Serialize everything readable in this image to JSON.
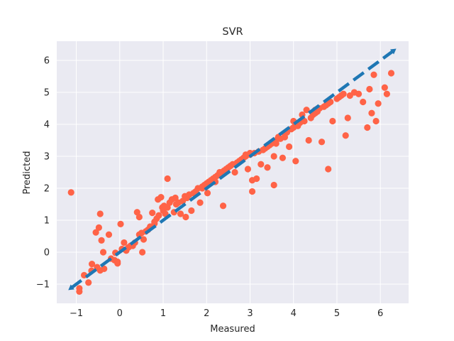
{
  "chart_data": {
    "type": "scatter",
    "title": "SVR",
    "xlabel": "Measured",
    "ylabel": "Predicted",
    "xlim": [
      -1.45,
      6.65
    ],
    "ylim": [
      -1.6,
      6.6
    ],
    "xticks": [
      -1,
      0,
      1,
      2,
      3,
      4,
      5,
      6
    ],
    "yticks": [
      -1,
      0,
      1,
      2,
      3,
      4,
      5,
      6
    ],
    "grid": true,
    "colors": {
      "background": "#eaeaf2",
      "grid": "#ffffff",
      "points": "#ff6347",
      "line": "#1f77b4"
    },
    "series": [
      {
        "kind": "points",
        "points": [
          [
            -1.12,
            1.87
          ],
          [
            -0.93,
            -1.13
          ],
          [
            -0.93,
            -1.23
          ],
          [
            -0.82,
            -0.72
          ],
          [
            -0.72,
            -0.95
          ],
          [
            -0.65,
            -0.58
          ],
          [
            -0.64,
            -0.37
          ],
          [
            -0.55,
            0.62
          ],
          [
            -0.52,
            -0.47
          ],
          [
            -0.48,
            0.77
          ],
          [
            -0.45,
            1.2
          ],
          [
            -0.45,
            -0.57
          ],
          [
            -0.42,
            0.37
          ],
          [
            -0.38,
            0.0
          ],
          [
            -0.36,
            -0.52
          ],
          [
            -0.25,
            0.55
          ],
          [
            -0.2,
            -0.2
          ],
          [
            -0.12,
            -0.25
          ],
          [
            -0.1,
            -0.02
          ],
          [
            -0.05,
            -0.35
          ],
          [
            -0.05,
            -0.3
          ],
          [
            0.02,
            0.88
          ],
          [
            0.05,
            0.1
          ],
          [
            0.1,
            0.3
          ],
          [
            0.15,
            0.05
          ],
          [
            0.2,
            0.15
          ],
          [
            0.25,
            0.2
          ],
          [
            0.3,
            0.2
          ],
          [
            0.35,
            0.3
          ],
          [
            0.4,
            1.25
          ],
          [
            0.45,
            1.1
          ],
          [
            0.45,
            0.55
          ],
          [
            0.5,
            0.6
          ],
          [
            0.52,
            0.0
          ],
          [
            0.55,
            0.4
          ],
          [
            0.6,
            0.65
          ],
          [
            0.65,
            0.7
          ],
          [
            0.7,
            0.8
          ],
          [
            0.75,
            1.23
          ],
          [
            0.8,
            0.9
          ],
          [
            0.85,
            1.05
          ],
          [
            0.88,
            1.65
          ],
          [
            0.9,
            1.15
          ],
          [
            0.95,
            1.72
          ],
          [
            0.98,
            1.4
          ],
          [
            1.0,
            1.3
          ],
          [
            1.02,
            1.45
          ],
          [
            1.05,
            1.2
          ],
          [
            1.1,
            1.4
          ],
          [
            1.15,
            1.55
          ],
          [
            1.2,
            1.65
          ],
          [
            1.25,
            1.25
          ],
          [
            1.28,
            1.7
          ],
          [
            1.3,
            1.5
          ],
          [
            1.35,
            1.55
          ],
          [
            1.4,
            1.2
          ],
          [
            1.45,
            1.6
          ],
          [
            1.5,
            1.75
          ],
          [
            1.52,
            1.1
          ],
          [
            1.55,
            1.7
          ],
          [
            1.6,
            1.8
          ],
          [
            1.65,
            1.3
          ],
          [
            1.7,
            1.85
          ],
          [
            1.75,
            1.9
          ],
          [
            1.8,
            2.0
          ],
          [
            1.85,
            1.55
          ],
          [
            1.9,
            2.05
          ],
          [
            1.95,
            2.1
          ],
          [
            2.0,
            2.15
          ],
          [
            2.02,
            1.85
          ],
          [
            2.05,
            2.2
          ],
          [
            2.1,
            2.25
          ],
          [
            2.15,
            2.3
          ],
          [
            2.2,
            2.2
          ],
          [
            2.25,
            2.4
          ],
          [
            2.3,
            2.45
          ],
          [
            2.35,
            2.5
          ],
          [
            2.38,
            1.45
          ],
          [
            2.4,
            2.55
          ],
          [
            2.45,
            2.6
          ],
          [
            2.5,
            2.65
          ],
          [
            2.55,
            2.7
          ],
          [
            2.6,
            2.75
          ],
          [
            2.65,
            2.5
          ],
          [
            2.7,
            2.8
          ],
          [
            2.75,
            2.85
          ],
          [
            2.8,
            2.9
          ],
          [
            2.85,
            2.95
          ],
          [
            2.9,
            3.0
          ],
          [
            2.95,
            2.6
          ],
          [
            3.0,
            3.05
          ],
          [
            3.05,
            1.9
          ],
          [
            3.05,
            2.25
          ],
          [
            3.1,
            3.1
          ],
          [
            3.15,
            2.3
          ],
          [
            3.2,
            3.15
          ],
          [
            3.25,
            2.75
          ],
          [
            3.3,
            3.2
          ],
          [
            3.35,
            3.25
          ],
          [
            3.4,
            2.65
          ],
          [
            3.45,
            3.35
          ],
          [
            3.5,
            3.4
          ],
          [
            3.55,
            2.1
          ],
          [
            3.55,
            3.0
          ],
          [
            3.6,
            3.5
          ],
          [
            3.65,
            3.6
          ],
          [
            3.7,
            3.55
          ],
          [
            3.75,
            2.95
          ],
          [
            3.8,
            3.7
          ],
          [
            3.85,
            3.75
          ],
          [
            3.9,
            3.3
          ],
          [
            3.95,
            3.85
          ],
          [
            4.0,
            3.9
          ],
          [
            4.05,
            2.85
          ],
          [
            4.1,
            3.95
          ],
          [
            4.15,
            4.05
          ],
          [
            4.2,
            4.3
          ],
          [
            4.25,
            4.1
          ],
          [
            4.3,
            4.45
          ],
          [
            4.35,
            3.5
          ],
          [
            4.4,
            4.2
          ],
          [
            4.45,
            4.3
          ],
          [
            4.5,
            4.35
          ],
          [
            4.55,
            4.4
          ],
          [
            4.6,
            4.5
          ],
          [
            4.65,
            3.45
          ],
          [
            4.7,
            4.55
          ],
          [
            4.75,
            4.6
          ],
          [
            4.8,
            4.65
          ],
          [
            4.85,
            4.7
          ],
          [
            4.9,
            4.1
          ],
          [
            5.0,
            4.8
          ],
          [
            5.05,
            4.85
          ],
          [
            5.1,
            4.9
          ],
          [
            5.15,
            4.95
          ],
          [
            5.2,
            3.65
          ],
          [
            5.25,
            4.2
          ],
          [
            5.3,
            4.9
          ],
          [
            5.4,
            5.0
          ],
          [
            5.5,
            4.95
          ],
          [
            5.6,
            4.7
          ],
          [
            5.7,
            3.9
          ],
          [
            5.8,
            4.35
          ],
          [
            5.85,
            5.55
          ],
          [
            5.9,
            4.1
          ],
          [
            5.95,
            4.65
          ],
          [
            6.1,
            5.15
          ],
          [
            6.15,
            4.95
          ],
          [
            6.25,
            5.6
          ],
          [
            1.1,
            2.3
          ],
          [
            4.8,
            2.6
          ],
          [
            5.75,
            5.1
          ],
          [
            3.0,
            3.1
          ],
          [
            2.9,
            3.05
          ],
          [
            3.4,
            3.3
          ],
          [
            3.6,
            3.4
          ],
          [
            2.2,
            2.35
          ],
          [
            2.3,
            2.5
          ],
          [
            4.5,
            4.45
          ],
          [
            4.0,
            4.1
          ],
          [
            3.8,
            3.6
          ],
          [
            1.6,
            1.8
          ],
          [
            1.9,
            2.0
          ],
          [
            0.8,
            0.95
          ]
        ]
      },
      {
        "kind": "dashed-line",
        "points": [
          [
            -1.12,
            -1.12
          ],
          [
            6.3,
            6.3
          ]
        ]
      }
    ]
  }
}
